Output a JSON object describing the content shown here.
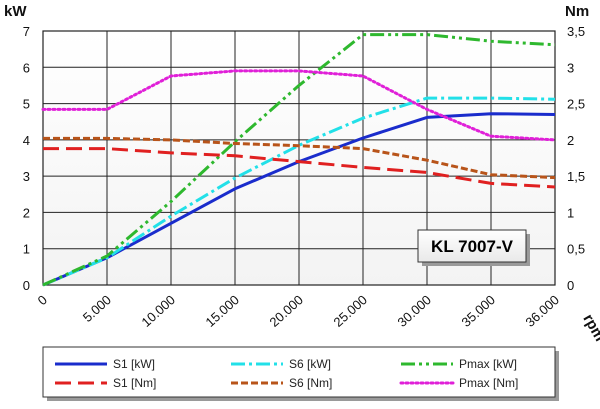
{
  "chart_data": {
    "type": "line",
    "annotation": "KL 7007-V",
    "xlabel": "rpm",
    "ylabel_left": "kW",
    "ylabel_right": "Nm",
    "x_categories": [
      "0",
      "5.000",
      "10.000",
      "15.000",
      "20.000",
      "25.000",
      "30.000",
      "35.000",
      "36.000"
    ],
    "x_values": [
      0,
      5000,
      10000,
      15000,
      20000,
      25000,
      30000,
      35000,
      36000
    ],
    "ylim_left": [
      0,
      7
    ],
    "ylim_right": [
      0,
      3.5
    ],
    "yticks_left": [
      "0",
      "1",
      "2",
      "3",
      "4",
      "5",
      "6",
      "7"
    ],
    "yticks_right": [
      "0",
      "0,5",
      "1",
      "1,5",
      "2",
      "2,5",
      "3",
      "3,5"
    ],
    "grid": true,
    "legend_position": "bottom",
    "series": [
      {
        "name": "S1 [kW]",
        "axis": "left",
        "color": "#1a2ccc",
        "style": "solid",
        "values": [
          0,
          0.75,
          1.7,
          2.65,
          3.4,
          4.05,
          4.62,
          4.72,
          4.7
        ]
      },
      {
        "name": "S6 [kW]",
        "axis": "left",
        "color": "#22e0e8",
        "style": "dashdot",
        "values": [
          0,
          0.75,
          1.9,
          2.95,
          3.85,
          4.6,
          5.15,
          5.15,
          5.12
        ]
      },
      {
        "name": "Pmax [kW]",
        "axis": "left",
        "color": "#2eb82e",
        "style": "dashdotdot",
        "values": [
          0,
          0.8,
          2.3,
          3.95,
          5.5,
          6.9,
          6.9,
          6.72,
          6.62
        ]
      },
      {
        "name": "S1 [Nm]",
        "axis": "right",
        "color": "#e02020",
        "style": "dashed",
        "values": [
          1.88,
          1.88,
          1.82,
          1.78,
          1.7,
          1.62,
          1.55,
          1.4,
          1.35
        ]
      },
      {
        "name": "S6 [Nm]",
        "axis": "right",
        "color": "#b8541a",
        "style": "shortdash",
        "values": [
          2.02,
          2.02,
          2.0,
          1.95,
          1.92,
          1.88,
          1.72,
          1.52,
          1.48
        ]
      },
      {
        "name": "Pmax [Nm]",
        "axis": "right",
        "color": "#e020d8",
        "style": "dotted",
        "values": [
          2.42,
          2.42,
          2.88,
          2.95,
          2.95,
          2.88,
          2.42,
          2.05,
          2.0
        ]
      }
    ]
  }
}
